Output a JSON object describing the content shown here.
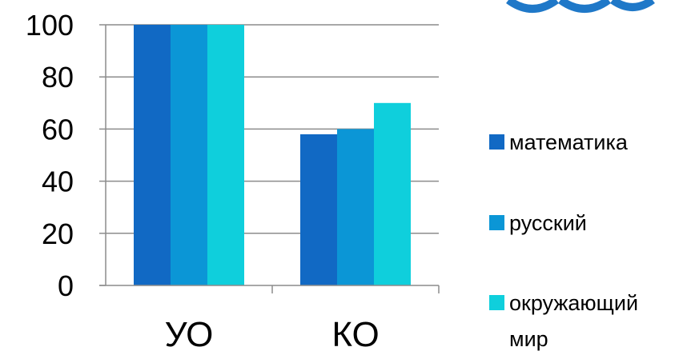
{
  "chart_data": {
    "type": "bar",
    "categories": [
      "УО",
      "КО"
    ],
    "series": [
      {
        "name": "математика",
        "values": [
          100,
          58
        ],
        "color": "#1169C4"
      },
      {
        "name": "русский",
        "values": [
          100,
          60
        ],
        "color": "#0B96D6"
      },
      {
        "name": "окружающий мир",
        "values": [
          100,
          70
        ],
        "color": "#0FCFDC"
      }
    ],
    "legend_lines": [
      [
        "математика"
      ],
      [
        "русский"
      ],
      [
        "окружающий",
        "мир"
      ]
    ],
    "yticks": [
      "0",
      "20",
      "40",
      "60",
      "80",
      "100"
    ],
    "ylim": [
      0,
      100
    ],
    "grid": true,
    "legend_position": "right",
    "title": "",
    "xlabel": "",
    "ylabel": ""
  },
  "logo_color": "#1f78c8"
}
